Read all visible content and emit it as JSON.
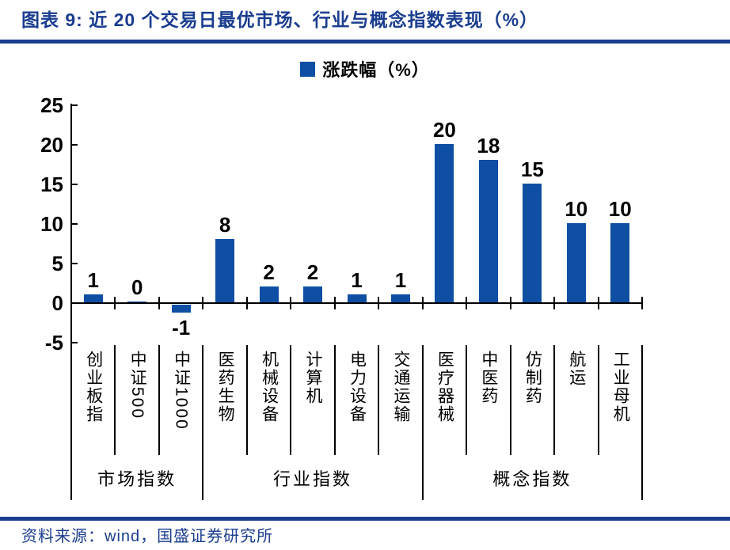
{
  "theme": {
    "accent_blue": "#1A3D8F",
    "bar_blue": "#0E4FA4",
    "axis_black": "#000000"
  },
  "header": {
    "title": "图表 9: 近 20 个交易日最优市场、行业与概念指数表现（%）"
  },
  "legend": {
    "label": "涨跌幅（%）",
    "swatch_color": "#0E4FA4"
  },
  "footer": {
    "source": "资料来源：wind，国盛证券研究所"
  },
  "chart_data": {
    "type": "bar",
    "title": "近 20 个交易日最优市场、行业与概念指数表现（%）",
    "legend": [
      "涨跌幅（%）"
    ],
    "legend_position": "top-center",
    "categories": [
      "创业板指",
      "中证500",
      "中证1000",
      "医药生物",
      "机械设备",
      "计算机",
      "电力设备",
      "交通运输",
      "医疗器械",
      "中医药",
      "仿制药",
      "航运",
      "工业母机"
    ],
    "values": [
      1,
      0,
      -1,
      8,
      2,
      2,
      1,
      1,
      20,
      18,
      15,
      10,
      10
    ],
    "groups": [
      {
        "label": "市场指数",
        "span": 3
      },
      {
        "label": "行业指数",
        "span": 5
      },
      {
        "label": "概念指数",
        "span": 5
      }
    ],
    "xlabel": "",
    "ylabel": "",
    "ylim": [
      -5,
      25
    ],
    "yticks": [
      -5,
      0,
      5,
      10,
      15,
      20,
      25
    ],
    "grid": false,
    "bar_color": "#0E4FA4"
  }
}
